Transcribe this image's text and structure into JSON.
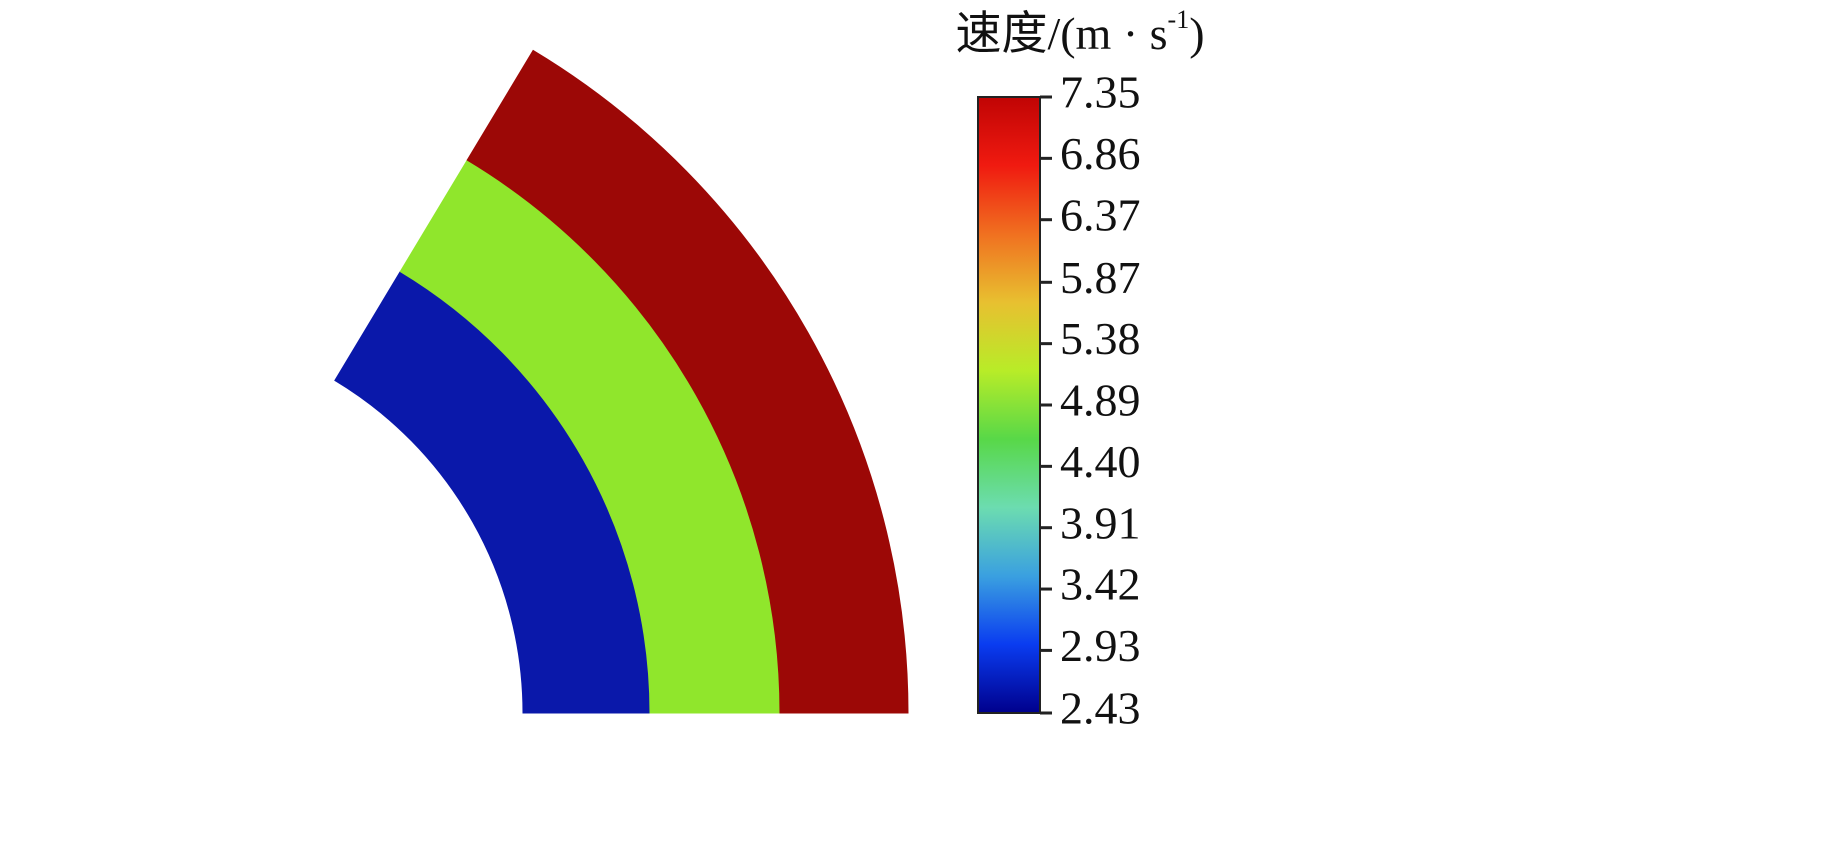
{
  "chart_data": {
    "type": "contour",
    "bands": [
      {
        "value": 2.5,
        "color": "#0a18aa"
      },
      {
        "value": 5.2,
        "color": "#90e62c"
      },
      {
        "value": 7.3,
        "color": "#9c0806"
      }
    ],
    "colorbar": {
      "label": "速度/(m · s",
      "label_superscript": "-1",
      "label_close": ")",
      "ylim": [
        2.43,
        7.35
      ],
      "yticks": [
        2.43,
        2.93,
        3.42,
        3.91,
        {
          "value": 4.4,
          "label": "4.40"
        },
        4.89,
        5.38,
        5.87,
        6.37,
        6.86,
        7.35
      ],
      "colormap": [
        "#00008c",
        "#0a3cf0",
        "#3aa0e0",
        "#6cdcb0",
        "#58d848",
        "#b8ec28",
        "#e8c030",
        "#f07020",
        "#f01a10",
        "#c00404"
      ]
    }
  }
}
